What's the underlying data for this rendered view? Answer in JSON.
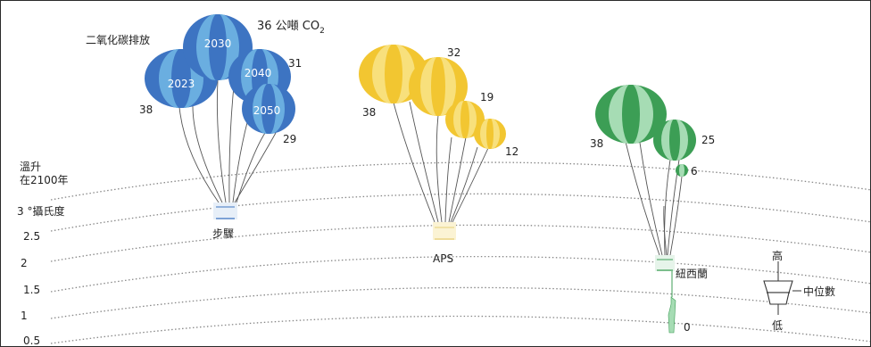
{
  "title": "二氧化碳排放",
  "unit_label": "36 公噸 CO",
  "unit_sub": "2",
  "y_axis": {
    "title_line1": "溫升",
    "title_line2": "在2100年",
    "ticks": [
      "3 °攝氏度",
      "2.5",
      "2",
      "1.5",
      "1",
      "0.5"
    ]
  },
  "colors": {
    "blue": "#3d74c2",
    "blue_light": "#6aaee0",
    "yellow": "#f2c631",
    "yellow_light": "#f8e07c",
    "green": "#3c9e55",
    "green_light": "#a6dcb4",
    "dotted": "#888888"
  },
  "groups": [
    {
      "name": "步驟",
      "balloons": [
        {
          "label": "2023",
          "value": "38"
        },
        {
          "label": "2030",
          "value": "36"
        },
        {
          "label": "2040",
          "value": "31"
        },
        {
          "label": "2050",
          "value": "29"
        }
      ]
    },
    {
      "name": "APS",
      "balloons": [
        {
          "label": "",
          "value": "38"
        },
        {
          "label": "",
          "value": "32"
        },
        {
          "label": "",
          "value": "19"
        },
        {
          "label": "",
          "value": "12"
        }
      ]
    },
    {
      "name": "紐西蘭",
      "balloons": [
        {
          "label": "",
          "value": "38"
        },
        {
          "label": "",
          "value": "25"
        },
        {
          "label": "",
          "value": "6"
        },
        {
          "label": "",
          "value": "0"
        }
      ]
    }
  ],
  "legend": {
    "high": "高",
    "median": "中位數",
    "low": "低"
  }
}
